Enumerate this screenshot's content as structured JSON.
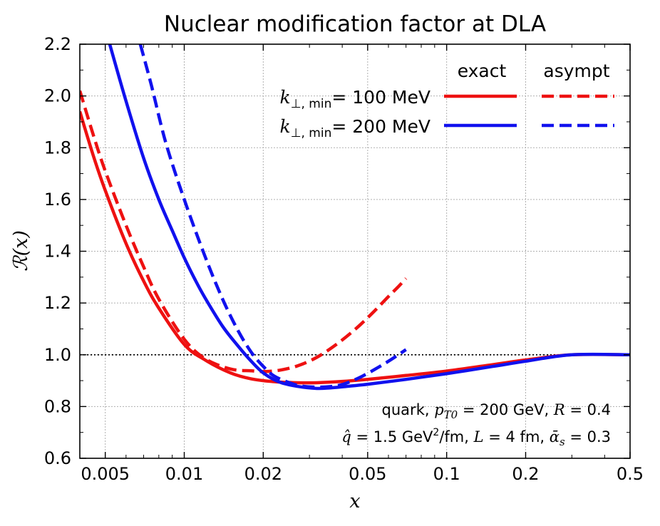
{
  "chart_data": {
    "type": "line",
    "title": "Nuclear modification factor at DLA",
    "xlabel": "x",
    "ylabel": "ℛ(x)",
    "xscale": "log",
    "xlim": [
      0.004,
      0.5
    ],
    "ylim": [
      0.6,
      2.2
    ],
    "grid": true,
    "xticks": [
      {
        "value": 0.005,
        "label": "0.005"
      },
      {
        "value": 0.01,
        "label": "0.01"
      },
      {
        "value": 0.02,
        "label": "0.02"
      },
      {
        "value": 0.05,
        "label": "0.05"
      },
      {
        "value": 0.1,
        "label": "0.1"
      },
      {
        "value": 0.2,
        "label": "0.2"
      },
      {
        "value": 0.5,
        "label": "0.5"
      }
    ],
    "yticks": [
      {
        "value": 0.6,
        "label": "0.6"
      },
      {
        "value": 0.8,
        "label": "0.8"
      },
      {
        "value": 1.0,
        "label": "1.0"
      },
      {
        "value": 1.2,
        "label": "1.2"
      },
      {
        "value": 1.4,
        "label": "1.4"
      },
      {
        "value": 1.6,
        "label": "1.6"
      },
      {
        "value": 1.8,
        "label": "1.8"
      },
      {
        "value": 2.0,
        "label": "2.0"
      },
      {
        "value": 2.2,
        "label": "2.2"
      }
    ],
    "reference_line": {
      "y": 1.0,
      "style": "dotted",
      "color": "#000000"
    },
    "legend": {
      "position": "top-right",
      "col_headers": [
        "exact",
        "asympt"
      ],
      "rows": [
        {
          "k_symbol": "k",
          "k_subscript": "⊥, min",
          "value_text": "= 100 MeV",
          "color": "#ee1111"
        },
        {
          "k_symbol": "k",
          "k_subscript": "⊥, min",
          "value_text": "= 200 MeV",
          "color": "#1111ee"
        }
      ]
    },
    "series": [
      {
        "name": "exact, k⊥,min = 100 MeV",
        "color": "#ee1111",
        "style": "solid",
        "x": [
          0.004,
          0.0045,
          0.005,
          0.006,
          0.007,
          0.008,
          0.01,
          0.012,
          0.015,
          0.018,
          0.022,
          0.027,
          0.032,
          0.04,
          0.05,
          0.07,
          0.1,
          0.15,
          0.2,
          0.3,
          0.5
        ],
        "y": [
          1.94,
          1.77,
          1.635,
          1.43,
          1.285,
          1.18,
          1.04,
          0.98,
          0.93,
          0.907,
          0.896,
          0.892,
          0.892,
          0.897,
          0.905,
          0.92,
          0.937,
          0.962,
          0.98,
          1.0,
          1.0
        ]
      },
      {
        "name": "asympt, k⊥,min = 100 MeV",
        "color": "#ee1111",
        "style": "dashed",
        "x": [
          0.004,
          0.0045,
          0.005,
          0.006,
          0.007,
          0.008,
          0.01,
          0.012,
          0.015,
          0.018,
          0.02,
          0.023,
          0.027,
          0.032,
          0.038,
          0.045,
          0.052,
          0.06,
          0.065,
          0.07
        ],
        "y": [
          2.02,
          1.85,
          1.71,
          1.5,
          1.34,
          1.215,
          1.06,
          0.985,
          0.945,
          0.938,
          0.935,
          0.94,
          0.957,
          0.99,
          1.04,
          1.1,
          1.16,
          1.225,
          1.26,
          1.295
        ]
      },
      {
        "name": "exact, k⊥,min = 200 MeV",
        "color": "#1111ee",
        "style": "solid",
        "x": [
          0.0052,
          0.006,
          0.007,
          0.008,
          0.009,
          0.01,
          0.011,
          0.012,
          0.014,
          0.016,
          0.018,
          0.02,
          0.023,
          0.027,
          0.032,
          0.036,
          0.04,
          0.05,
          0.07,
          0.1,
          0.15,
          0.2,
          0.3,
          0.5
        ],
        "y": [
          2.2,
          1.98,
          1.76,
          1.6,
          1.48,
          1.375,
          1.29,
          1.22,
          1.11,
          1.035,
          0.975,
          0.93,
          0.895,
          0.878,
          0.87,
          0.872,
          0.876,
          0.886,
          0.905,
          0.927,
          0.955,
          0.975,
          1.0,
          1.0
        ]
      },
      {
        "name": "asympt, k⊥,min = 200 MeV",
        "color": "#1111ee",
        "style": "dashed",
        "x": [
          0.0068,
          0.0075,
          0.0085,
          0.01,
          0.012,
          0.014,
          0.016,
          0.018,
          0.02,
          0.022,
          0.025,
          0.028,
          0.032,
          0.036,
          0.04,
          0.045,
          0.05,
          0.055,
          0.06,
          0.065,
          0.07
        ],
        "y": [
          2.2,
          2.04,
          1.82,
          1.6,
          1.38,
          1.215,
          1.095,
          1.01,
          0.955,
          0.918,
          0.893,
          0.879,
          0.875,
          0.877,
          0.885,
          0.905,
          0.928,
          0.952,
          0.975,
          0.998,
          1.02
        ]
      }
    ],
    "annotations": {
      "line1_prefix": "quark, ",
      "line1_p": "p",
      "line1_p_sub": "T0",
      "line1_mid": " = 200 GeV, ",
      "line1_R": "R",
      "line1_suffix": " = 0.4",
      "line2_q": "q̂",
      "line2_a": " = 1.5 GeV",
      "line2_sup": "2",
      "line2_b": "/fm, ",
      "line2_L": "L",
      "line2_c": " = 4 fm, ",
      "line2_alpha": "ᾱ",
      "line2_alpha_sub": "s",
      "line2_d": " = 0.3"
    }
  }
}
